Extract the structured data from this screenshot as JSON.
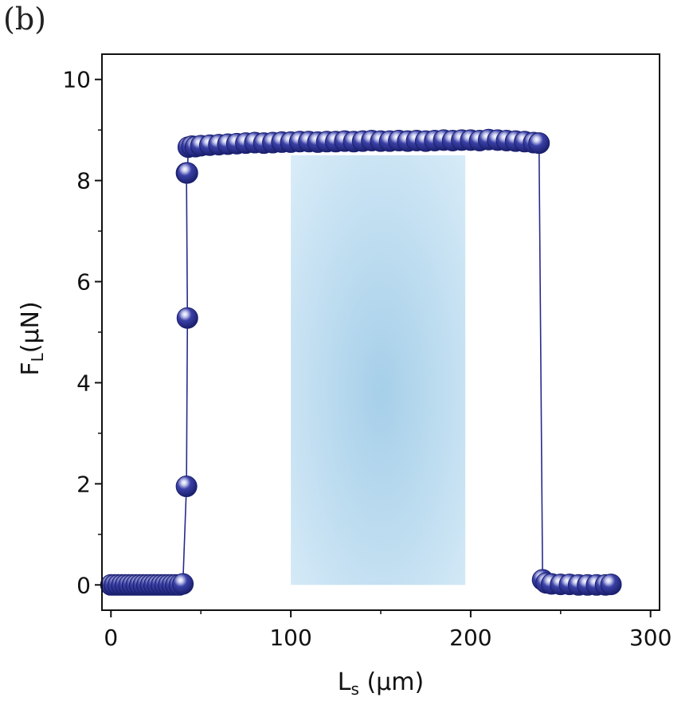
{
  "panel_label": "(b)",
  "colors": {
    "marker": "#262b8c",
    "marker_edge": "#1a1f6e",
    "line": "#262b8c",
    "highlight": "#a9d2ec"
  },
  "chart_data": {
    "type": "scatter",
    "xlabel_main": "L",
    "xlabel_sub": "s",
    "xlabel_unit": " (μm)",
    "ylabel_main": "F",
    "ylabel_sub": "L",
    "ylabel_unit": "(μN)",
    "xlim": [
      -5,
      305
    ],
    "ylim": [
      -0.5,
      10.5
    ],
    "xticks": [
      0,
      100,
      200,
      300
    ],
    "xtick_labels": [
      "0",
      "100",
      "200",
      "300"
    ],
    "yticks": [
      0,
      2,
      4,
      6,
      8,
      10
    ],
    "ytick_labels": [
      "0",
      "2",
      "4",
      "6",
      "8",
      "10"
    ],
    "shaded_region": {
      "x": [
        100,
        197
      ],
      "y": [
        0,
        8.5
      ]
    },
    "series": [
      {
        "x": [
          0,
          2,
          4,
          6,
          8,
          10,
          12,
          14,
          16,
          18,
          20,
          22,
          24,
          26,
          28,
          30,
          32,
          34,
          36,
          38,
          40,
          42,
          42.5,
          42,
          42.5,
          43,
          45,
          47,
          50,
          55,
          60,
          65,
          70,
          75,
          80,
          85,
          90,
          95,
          100,
          105,
          110,
          115,
          120,
          125,
          130,
          135,
          140,
          145,
          150,
          155,
          160,
          165,
          170,
          175,
          180,
          185,
          190,
          195,
          200,
          205,
          210,
          215,
          220,
          225,
          230,
          235,
          238,
          240,
          242,
          245,
          250,
          255,
          260,
          265,
          270,
          275,
          278
        ],
        "y": [
          0,
          0,
          0,
          0,
          0,
          0,
          0,
          0,
          0,
          0,
          0,
          0,
          0,
          0,
          0,
          0,
          0,
          0,
          0,
          0,
          0.02,
          1.95,
          5.28,
          8.15,
          8.15,
          8.66,
          8.68,
          8.67,
          8.69,
          8.7,
          8.71,
          8.72,
          8.73,
          8.74,
          8.75,
          8.74,
          8.75,
          8.76,
          8.76,
          8.77,
          8.77,
          8.76,
          8.77,
          8.77,
          8.78,
          8.77,
          8.78,
          8.79,
          8.78,
          8.78,
          8.79,
          8.78,
          8.79,
          8.78,
          8.79,
          8.8,
          8.79,
          8.8,
          8.8,
          8.79,
          8.81,
          8.8,
          8.79,
          8.78,
          8.77,
          8.75,
          8.74,
          0.1,
          0.04,
          0.02,
          0.01,
          0.01,
          0,
          0,
          0,
          0,
          0.01
        ]
      }
    ]
  }
}
